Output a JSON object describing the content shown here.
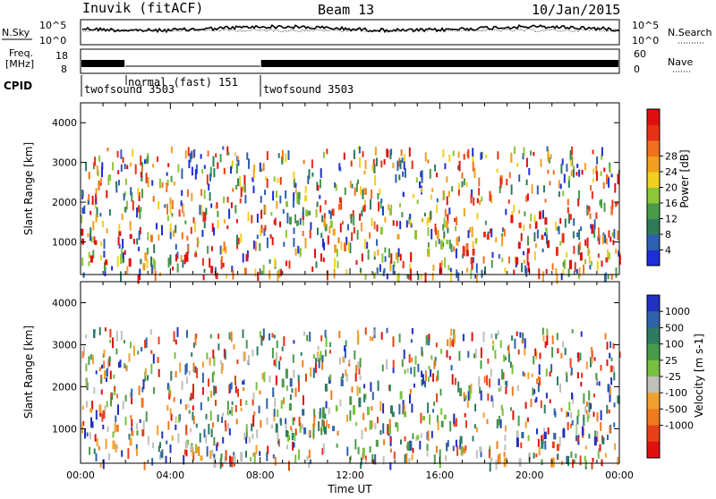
{
  "header": {
    "title": "Inuvik (fitACF)",
    "beam": "Beam 13",
    "date": "10/Jan/2015"
  },
  "noise_panel": {
    "left_label": "N.Sky",
    "right_label": "N.Search",
    "left_ticks": [
      "10^5",
      "10^0"
    ],
    "right_ticks": [
      "10^5",
      "10^0"
    ]
  },
  "freq_panel": {
    "left_label_line1": "Freq.",
    "left_label_line2": "[MHz]",
    "left_ticks": [
      "18",
      "8"
    ],
    "right_label": "Nave",
    "right_ticks": [
      "60",
      "0"
    ]
  },
  "cpid": {
    "label": "CPID",
    "segments": [
      {
        "start_hour": 0,
        "end_hour": 2,
        "text": "twofsound 3503"
      },
      {
        "start_hour": 2,
        "end_hour": 8,
        "text": "normal (fast) 151"
      },
      {
        "start_hour": 8,
        "end_hour": 24,
        "text": "twofsound 3503"
      }
    ]
  },
  "chart_data": [
    {
      "type": "heatmap",
      "name": "power",
      "ylabel": "Slant Range [km]",
      "ylim": [
        180,
        4500
      ],
      "yticks": [
        1000,
        2000,
        3000,
        4000
      ],
      "xlim": [
        0,
        24
      ],
      "colorbar": {
        "label": "Power [dB]",
        "min": 0,
        "max": 32,
        "ticks": [
          "4",
          "8",
          "12",
          "16",
          "20",
          "24",
          "28"
        ],
        "colors": [
          "#1e2dd8",
          "#2f5fb0",
          "#2f7a5a",
          "#4a9a4a",
          "#8ec63a",
          "#f0d020",
          "#f2a020",
          "#f07020",
          "#e83018",
          "#e01010"
        ]
      },
      "regions": [
        {
          "t0": 0.0,
          "t1": 2.5,
          "r0": 500,
          "r1": 1700,
          "level": 9
        },
        {
          "t0": 2.5,
          "t1": 4.0,
          "r0": 400,
          "r1": 1200,
          "level": 6
        },
        {
          "t0": 4.5,
          "t1": 8.5,
          "r0": 200,
          "r1": 800,
          "level": 8
        },
        {
          "t0": 8.5,
          "t1": 11.5,
          "r0": 1400,
          "r1": 2600,
          "level": 4
        },
        {
          "t0": 10.5,
          "t1": 13.0,
          "r0": 900,
          "r1": 2200,
          "level": 7
        },
        {
          "t0": 13.0,
          "t1": 17.0,
          "r0": 800,
          "r1": 2000,
          "level": 5
        },
        {
          "t0": 17.0,
          "t1": 19.0,
          "r0": 300,
          "r1": 1400,
          "level": 8
        },
        {
          "t0": 19.0,
          "t1": 24.0,
          "r0": 500,
          "r1": 1800,
          "level": 9
        }
      ]
    },
    {
      "type": "heatmap",
      "name": "velocity",
      "ylabel": "Slant Range [km]",
      "xlabel": "Time UT",
      "ylim": [
        180,
        4500
      ],
      "yticks": [
        1000,
        2000,
        3000,
        4000
      ],
      "xlim": [
        0,
        24
      ],
      "xticks": [
        "00:00",
        "04:00",
        "08:00",
        "12:00",
        "16:00",
        "20:00",
        "00:00"
      ],
      "colorbar": {
        "label": "Velocity [m s-1]",
        "ticks": [
          "1000",
          "500",
          "100",
          "25",
          "-25",
          "-100",
          "-500",
          "-1000"
        ],
        "colors": [
          "#2030c0",
          "#2f62a8",
          "#2f7a62",
          "#4a9a4a",
          "#78c040",
          "#c0c0b8",
          "#f0a030",
          "#f07a20",
          "#e84018",
          "#e01010"
        ]
      },
      "regions": [
        {
          "t0": 0.0,
          "t1": 3.0,
          "r0": 700,
          "r1": 1900,
          "level": 7
        },
        {
          "t0": 3.5,
          "t1": 8.5,
          "r0": 250,
          "r1": 900,
          "level": 5
        },
        {
          "t0": 8.5,
          "t1": 12.0,
          "r0": 800,
          "r1": 2600,
          "level": 2
        },
        {
          "t0": 12.0,
          "t1": 17.0,
          "r0": 500,
          "r1": 2000,
          "level": 3
        },
        {
          "t0": 17.0,
          "t1": 20.0,
          "r0": 300,
          "r1": 1200,
          "level": 6
        },
        {
          "t0": 19.0,
          "t1": 24.0,
          "r0": 700,
          "r1": 1300,
          "level": 1
        },
        {
          "t0": 20.0,
          "t1": 24.0,
          "r0": 300,
          "r1": 700,
          "level": 7
        }
      ]
    }
  ]
}
